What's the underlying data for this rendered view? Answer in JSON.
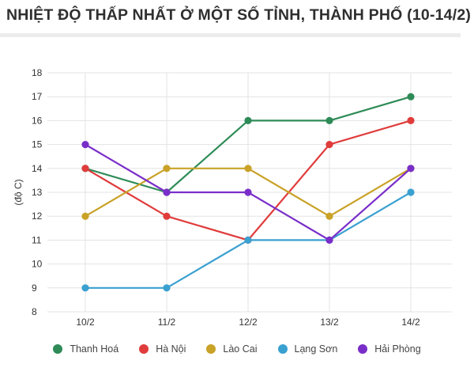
{
  "chart_data": {
    "type": "line",
    "title": "NHIỆT ĐỘ THẤP NHẤT Ở MỘT SỐ TỈNH, THÀNH PHỐ (10-14/2)",
    "xlabel": "",
    "ylabel": "(độ C)",
    "categories": [
      "10/2",
      "11/2",
      "12/2",
      "13/2",
      "14/2"
    ],
    "ylim": [
      8,
      18
    ],
    "yticks": [
      8,
      9,
      10,
      11,
      12,
      13,
      14,
      15,
      16,
      17,
      18
    ],
    "grid": true,
    "legend": "bottom",
    "series": [
      {
        "name": "Thanh Hoá",
        "color": "#2e8b57",
        "values": [
          14,
          13,
          16,
          16,
          17
        ]
      },
      {
        "name": "Hà Nội",
        "color": "#e03c3c",
        "values": [
          14,
          12,
          11,
          15,
          16
        ]
      },
      {
        "name": "Lào Cai",
        "color": "#c9a227",
        "values": [
          12,
          14,
          14,
          12,
          14
        ]
      },
      {
        "name": "Lạng Sơn",
        "color": "#3aa0d0",
        "values": [
          9,
          9,
          11,
          11,
          13
        ]
      },
      {
        "name": "Hải Phòng",
        "color": "#7a2ec9",
        "values": [
          15,
          13,
          13,
          11,
          14
        ]
      }
    ]
  }
}
